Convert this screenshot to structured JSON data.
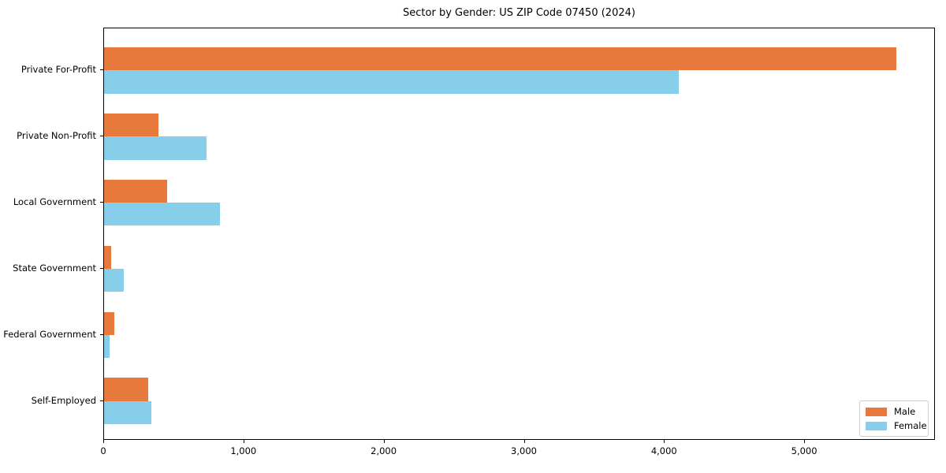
{
  "chart_data": {
    "type": "bar",
    "orientation": "horizontal",
    "title": "Sector by Gender: US ZIP Code 07450 (2024)",
    "xlabel": "",
    "ylabel": "",
    "categories": [
      "Private For-Profit",
      "Private Non-Profit",
      "Local Government",
      "State Government",
      "Federal Government",
      "Self-Employed"
    ],
    "series": [
      {
        "name": "Male",
        "color": "#E8793D",
        "values": [
          5650,
          390,
          450,
          50,
          75,
          315
        ]
      },
      {
        "name": "Female",
        "color": "#87CEEB",
        "values": [
          4100,
          730,
          825,
          140,
          40,
          335
        ]
      }
    ],
    "xlim": [
      0,
      5933
    ],
    "xticks": {
      "values": [
        0,
        1000,
        2000,
        3000,
        4000,
        5000
      ],
      "labels": [
        "0",
        "1,000",
        "2,000",
        "3,000",
        "4,000",
        "5,000"
      ]
    },
    "grid": "off",
    "legend_position": "lower right",
    "background_color": "#ffffff",
    "spine_color": "#000000"
  }
}
